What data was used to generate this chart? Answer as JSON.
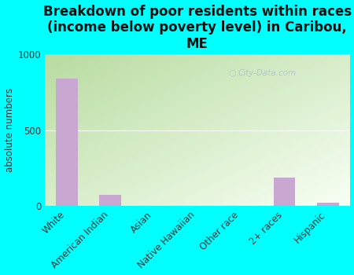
{
  "title": "Breakdown of poor residents within races\n(income below poverty level) in Caribou,\nME",
  "categories": [
    "White",
    "American Indian",
    "Asian",
    "Native Hawaiian",
    "Other race",
    "2+ races",
    "Hispanic"
  ],
  "values": [
    840,
    75,
    0,
    0,
    0,
    190,
    20
  ],
  "bar_color": "#c8a8d0",
  "ylabel": "absolute numbers",
  "ylim": [
    0,
    1000
  ],
  "yticks": [
    0,
    500,
    1000
  ],
  "background_color": "#00ffff",
  "gradient_top_left": "#b8dca0",
  "gradient_bottom_right": "#f8fff4",
  "watermark": "City-Data.com",
  "title_fontsize": 12,
  "label_fontsize": 8.5,
  "watermark_color": "#aabbcc"
}
